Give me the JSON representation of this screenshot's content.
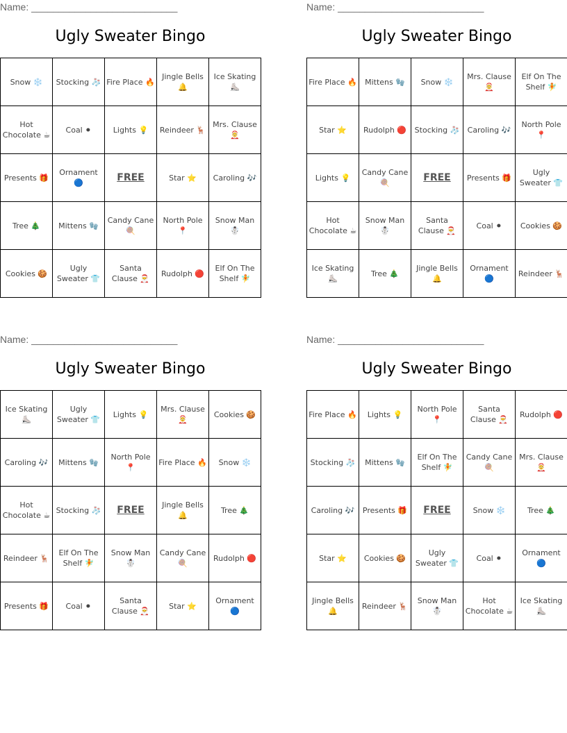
{
  "cards": [
    {
      "name_label": "Name: ___________________________",
      "title": "Ugly Sweater Bingo",
      "rows": [
        [
          "Snow ❄️",
          "Stocking 🧦",
          "Fire Place 🔥",
          "Jingle Bells 🔔",
          "Ice Skating ⛸️"
        ],
        [
          "Hot Chocolate ☕",
          "Coal ⚫",
          "Lights 💡",
          "Reindeer 🦌",
          "Mrs. Clause 🤶"
        ],
        [
          "Presents 🎁",
          "Ornament 🔵",
          "FREE",
          "Star ⭐",
          "Caroling 🎶"
        ],
        [
          "Tree 🎄",
          "Mittens 🧤",
          "Candy Cane 🍭",
          "North Pole 📍",
          "Snow Man ☃️"
        ],
        [
          "Cookies 🍪",
          "Ugly Sweater 👕",
          "Santa Clause 🎅",
          "Rudolph 🔴",
          "Elf On The Shelf 🧚"
        ]
      ]
    },
    {
      "name_label": "Name: ___________________________",
      "title": "Ugly Sweater Bingo",
      "rows": [
        [
          "Fire Place 🔥",
          "Mittens 🧤",
          "Snow ❄️",
          "Mrs. Clause 🤶",
          "Elf On The Shelf 🧚"
        ],
        [
          "Star ⭐",
          "Rudolph 🔴",
          "Stocking 🧦",
          "Caroling 🎶",
          "North Pole 📍"
        ],
        [
          "Lights 💡",
          "Candy Cane 🍭",
          "FREE",
          "Presents 🎁",
          "Ugly Sweater 👕"
        ],
        [
          "Hot Chocolate ☕",
          "Snow Man ☃️",
          "Santa Clause 🎅",
          "Coal ⚫",
          "Cookies 🍪"
        ],
        [
          "Ice Skating ⛸️",
          "Tree 🎄",
          "Jingle Bells 🔔",
          "Ornament 🔵",
          "Reindeer 🦌"
        ]
      ]
    },
    {
      "name_label": "Name: ___________________________",
      "title": "Ugly Sweater Bingo",
      "rows": [
        [
          "Ice Skating ⛸️",
          "Ugly Sweater 👕",
          "Lights 💡",
          "Mrs. Clause 🤶",
          "Cookies 🍪"
        ],
        [
          "Caroling 🎶",
          "Mittens 🧤",
          "North Pole 📍",
          "Fire Place 🔥",
          "Snow ❄️"
        ],
        [
          "Hot Chocolate ☕",
          "Stocking 🧦",
          "FREE",
          "Jingle Bells 🔔",
          "Tree 🎄"
        ],
        [
          "Reindeer 🦌",
          "Elf On The Shelf 🧚",
          "Snow Man ☃️",
          "Candy Cane 🍭",
          "Rudolph 🔴"
        ],
        [
          "Presents 🎁",
          "Coal ⚫",
          "Santa Clause 🎅",
          "Star ⭐",
          "Ornament 🔵"
        ]
      ]
    },
    {
      "name_label": "Name: ___________________________",
      "title": "Ugly Sweater Bingo",
      "rows": [
        [
          "Fire Place 🔥",
          "Lights 💡",
          "North Pole 📍",
          "Santa Clause 🎅",
          "Rudolph 🔴"
        ],
        [
          "Stocking 🧦",
          "Mittens 🧤",
          "Elf On The Shelf 🧚",
          "Candy Cane 🍭",
          "Mrs. Clause 🤶"
        ],
        [
          "Caroling 🎶",
          "Presents 🎁",
          "FREE",
          "Snow ❄️",
          "Tree 🎄"
        ],
        [
          "Star ⭐",
          "Cookies 🍪",
          "Ugly Sweater 👕",
          "Coal ⚫",
          "Ornament 🔵"
        ],
        [
          "Jingle Bells 🔔",
          "Reindeer 🦌",
          "Snow Man ☃️",
          "Hot Chocolate ☕",
          "Ice Skating ⛸️"
        ]
      ]
    }
  ]
}
